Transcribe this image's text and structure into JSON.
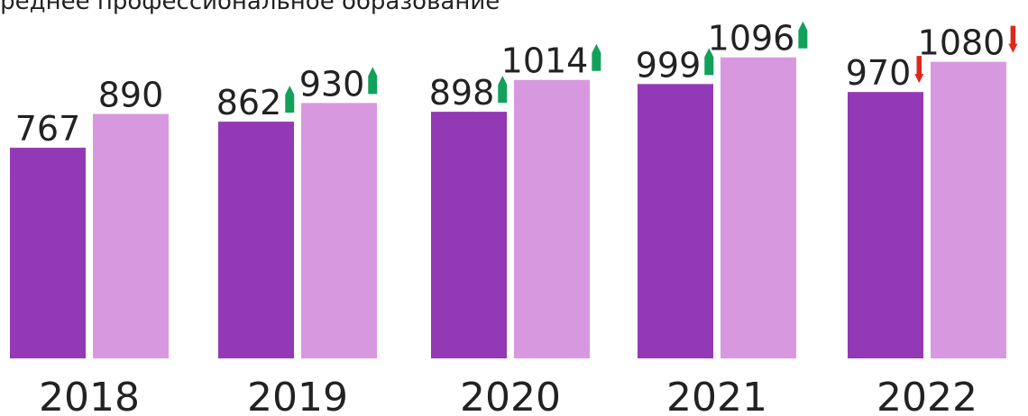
{
  "chart_data": {
    "type": "bar",
    "title": "Среднее профессиональное образование",
    "categories": [
      "2018",
      "2019",
      "2020",
      "2021",
      "2022"
    ],
    "series": [
      {
        "color": "#9339b5",
        "values": [
          767,
          862,
          898,
          999,
          970
        ],
        "trends": [
          null,
          "up",
          "up",
          "up",
          "down"
        ]
      },
      {
        "color": "#d898e0",
        "values": [
          890,
          930,
          1014,
          1096,
          1080
        ],
        "trends": [
          null,
          "up",
          "up",
          "up",
          "down"
        ]
      }
    ],
    "trend_colors": {
      "up": "#12a05a",
      "down": "#e0271c"
    },
    "ylim": [
      0,
      1305
    ]
  }
}
